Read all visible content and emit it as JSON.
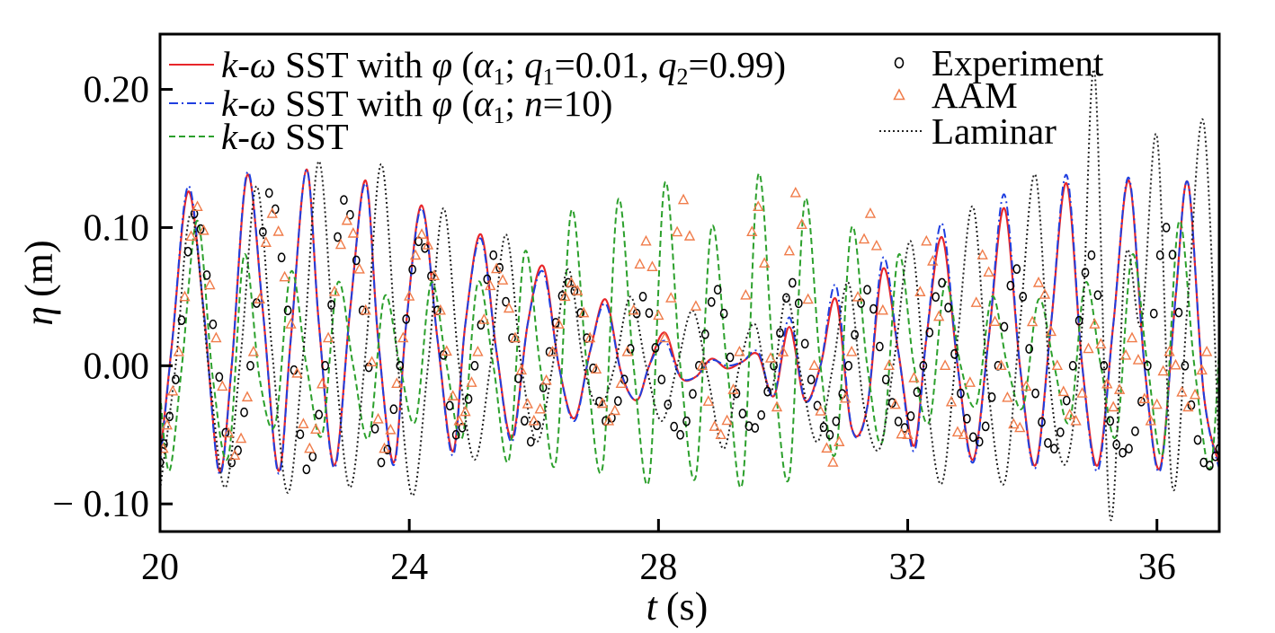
{
  "chart_data": {
    "type": "line",
    "xlabel_var": "t",
    "xlabel_unit": "(s)",
    "ylabel_var": "η",
    "ylabel_unit": "(m)",
    "xlim": [
      20,
      37
    ],
    "ylim": [
      -0.12,
      0.24
    ],
    "xticks": [
      20,
      24,
      28,
      32,
      36
    ],
    "xtick_labels": [
      "20",
      "24",
      "28",
      "32",
      "36"
    ],
    "yticks": [
      0.2,
      0.1,
      0.0,
      -0.1
    ],
    "ytick_labels": [
      "0.20",
      "0.10",
      "0.00",
      "− 0.10"
    ],
    "legend_placement": "top",
    "series": [
      {
        "key": "phi_q",
        "name": "k-ω SST with φ (α1; q1=0.01, q2=0.99)",
        "style": "solid",
        "color": "#e8262a",
        "x": [
          20.0,
          20.2,
          20.45,
          20.7,
          20.95,
          21.15,
          21.4,
          21.65,
          21.9,
          22.1,
          22.35,
          22.55,
          22.8,
          23.05,
          23.3,
          23.5,
          23.75,
          23.95,
          24.2,
          24.45,
          24.7,
          24.9,
          25.15,
          25.4,
          25.65,
          25.9,
          26.15,
          26.4,
          26.65,
          26.9,
          27.15,
          27.4,
          27.65,
          27.85,
          28.1,
          28.35,
          28.6,
          28.85,
          29.1,
          29.35,
          29.6,
          29.85,
          30.1,
          30.35,
          30.6,
          30.85,
          31.1,
          31.35,
          31.6,
          31.85,
          32.1,
          32.3,
          32.55,
          32.8,
          33.05,
          33.3,
          33.55,
          33.8,
          34.05,
          34.3,
          34.55,
          34.8,
          35.05,
          35.3,
          35.55,
          35.8,
          36.05,
          36.3,
          36.5,
          36.75,
          37.0
        ],
        "y": [
          -0.068,
          0.02,
          0.126,
          0.04,
          -0.076,
          0.0,
          0.138,
          0.04,
          -0.076,
          0.02,
          0.142,
          0.03,
          -0.072,
          0.04,
          0.134,
          0.02,
          -0.07,
          0.03,
          0.116,
          0.02,
          -0.062,
          0.03,
          0.095,
          0.01,
          -0.052,
          0.03,
          0.072,
          0.0,
          -0.038,
          0.01,
          0.048,
          -0.005,
          -0.025,
          0.0,
          0.024,
          -0.008,
          -0.008,
          0.005,
          -0.002,
          0.003,
          0.008,
          -0.022,
          0.028,
          -0.025,
          0.0,
          0.048,
          -0.045,
          -0.03,
          0.07,
          0.01,
          -0.058,
          0.02,
          0.093,
          0.0,
          -0.068,
          0.02,
          0.114,
          0.0,
          -0.072,
          0.03,
          0.132,
          0.0,
          -0.072,
          0.03,
          0.134,
          0.0,
          -0.074,
          0.05,
          0.132,
          -0.02,
          -0.072
        ]
      },
      {
        "key": "phi_n",
        "name": "k-ω SST with φ (α1; n=10)",
        "style": "dashdot",
        "color": "#1f3fe0",
        "x": [
          20.0,
          20.2,
          20.45,
          20.7,
          20.95,
          21.15,
          21.4,
          21.65,
          21.9,
          22.1,
          22.35,
          22.55,
          22.8,
          23.05,
          23.3,
          23.5,
          23.75,
          23.95,
          24.2,
          24.45,
          24.7,
          24.9,
          25.15,
          25.4,
          25.65,
          25.9,
          26.15,
          26.4,
          26.65,
          26.9,
          27.15,
          27.4,
          27.65,
          27.85,
          28.1,
          28.35,
          28.6,
          28.85,
          29.1,
          29.35,
          29.6,
          29.85,
          30.1,
          30.35,
          30.6,
          30.85,
          31.1,
          31.35,
          31.6,
          31.85,
          32.1,
          32.3,
          32.55,
          32.8,
          33.05,
          33.3,
          33.55,
          33.8,
          34.05,
          34.3,
          34.55,
          34.8,
          35.05,
          35.3,
          35.55,
          35.8,
          36.05,
          36.3,
          36.5,
          36.75,
          37.0
        ],
        "y": [
          -0.072,
          0.02,
          0.13,
          0.04,
          -0.078,
          0.0,
          0.14,
          0.04,
          -0.078,
          0.02,
          0.142,
          0.03,
          -0.074,
          0.04,
          0.132,
          0.02,
          -0.072,
          0.03,
          0.114,
          0.02,
          -0.065,
          0.03,
          0.092,
          0.01,
          -0.055,
          0.03,
          0.068,
          0.0,
          -0.04,
          0.01,
          0.045,
          -0.005,
          -0.025,
          0.0,
          0.018,
          -0.008,
          -0.008,
          0.004,
          0.0,
          0.003,
          0.01,
          -0.022,
          0.035,
          -0.025,
          0.0,
          0.058,
          -0.045,
          -0.03,
          0.078,
          0.01,
          -0.062,
          0.02,
          0.103,
          0.0,
          -0.07,
          0.02,
          0.124,
          0.0,
          -0.074,
          0.03,
          0.138,
          0.0,
          -0.076,
          0.03,
          0.136,
          0.0,
          -0.076,
          0.05,
          0.132,
          -0.02,
          -0.075
        ]
      },
      {
        "key": "sst",
        "name": "k-ω SST",
        "style": "dashed",
        "color": "#2ca02c",
        "x": [
          20.0,
          20.15,
          20.35,
          20.6,
          20.85,
          21.1,
          21.35,
          21.6,
          21.85,
          22.1,
          22.35,
          22.6,
          22.85,
          23.1,
          23.35,
          23.6,
          23.85,
          24.1,
          24.35,
          24.6,
          24.85,
          25.1,
          25.35,
          25.6,
          25.85,
          26.1,
          26.35,
          26.6,
          26.85,
          27.1,
          27.35,
          27.6,
          27.85,
          28.1,
          28.35,
          28.6,
          28.85,
          29.1,
          29.35,
          29.6,
          29.85,
          30.1,
          30.35,
          30.6,
          30.85,
          31.1,
          31.35,
          31.6,
          31.85,
          32.1,
          32.35,
          32.6,
          32.85,
          33.1,
          33.35,
          33.6,
          33.85,
          34.1,
          34.35,
          34.6,
          34.85,
          35.1,
          35.35,
          35.6,
          35.85,
          36.1,
          36.35,
          36.6,
          36.85,
          37.0
        ],
        "y": [
          -0.02,
          -0.076,
          0.0,
          0.105,
          -0.01,
          -0.065,
          0.08,
          -0.01,
          -0.042,
          0.068,
          0.0,
          -0.05,
          0.06,
          0.0,
          -0.052,
          0.05,
          0.0,
          -0.04,
          0.06,
          0.0,
          -0.052,
          0.06,
          0.0,
          -0.068,
          0.082,
          0.0,
          -0.07,
          0.112,
          0.0,
          -0.074,
          0.12,
          0.0,
          -0.082,
          0.132,
          0.0,
          -0.08,
          0.1,
          0.0,
          -0.084,
          0.138,
          0.0,
          -0.08,
          0.12,
          0.0,
          -0.062,
          0.1,
          0.0,
          -0.054,
          0.08,
          0.0,
          -0.04,
          0.06,
          0.0,
          -0.028,
          0.05,
          0.0,
          -0.03,
          0.048,
          0.0,
          -0.04,
          0.06,
          0.0,
          -0.05,
          0.08,
          0.0,
          -0.062,
          0.104,
          0.0,
          -0.075,
          0.012
        ]
      },
      {
        "key": "laminar",
        "name": "Laminar",
        "style": "dotted",
        "color": "#222222",
        "x": [
          20.0,
          20.25,
          20.5,
          20.8,
          21.05,
          21.3,
          21.55,
          21.8,
          22.05,
          22.3,
          22.55,
          22.8,
          23.05,
          23.3,
          23.55,
          23.8,
          24.05,
          24.3,
          24.55,
          24.8,
          25.05,
          25.3,
          25.55,
          25.8,
          26.05,
          26.3,
          26.55,
          26.8,
          27.05,
          27.3,
          27.55,
          27.8,
          28.05,
          28.3,
          28.55,
          28.8,
          29.05,
          29.3,
          29.55,
          29.8,
          30.05,
          30.3,
          30.55,
          30.8,
          31.05,
          31.3,
          31.55,
          31.8,
          32.05,
          32.3,
          32.55,
          32.8,
          33.05,
          33.3,
          33.55,
          33.8,
          34.05,
          34.3,
          34.55,
          34.8,
          35.0,
          35.25,
          35.5,
          35.75,
          36.0,
          36.25,
          36.5,
          36.75,
          37.0
        ],
        "y": [
          -0.09,
          0.0,
          0.11,
          -0.01,
          -0.088,
          0.01,
          0.13,
          0.01,
          -0.092,
          0.01,
          0.148,
          0.01,
          -0.088,
          0.01,
          0.146,
          0.01,
          -0.094,
          0.0,
          0.114,
          0.0,
          -0.068,
          0.0,
          0.095,
          0.0,
          -0.055,
          0.0,
          0.07,
          0.0,
          -0.03,
          0.0,
          0.05,
          0.0,
          -0.04,
          0.0,
          0.04,
          -0.01,
          -0.06,
          0.0,
          0.03,
          -0.02,
          0.05,
          -0.01,
          -0.055,
          0.0,
          0.06,
          -0.03,
          -0.06,
          0.01,
          0.09,
          -0.02,
          -0.085,
          0.02,
          0.115,
          -0.02,
          -0.085,
          0.03,
          0.138,
          -0.02,
          -0.07,
          0.03,
          0.212,
          -0.11,
          0.08,
          0.03,
          0.166,
          -0.088,
          0.05,
          0.176,
          -0.065
        ]
      },
      {
        "key": "experiment",
        "name": "Experiment",
        "style": "circle",
        "color": "#000000",
        "x": [
          20.0,
          20.25,
          20.55,
          20.85,
          21.15,
          21.45,
          21.75,
          22.05,
          22.35,
          22.65,
          22.95,
          23.25,
          23.55,
          23.85,
          24.15,
          24.45,
          24.75,
          25.05,
          25.35,
          25.65,
          25.95,
          26.25,
          26.55,
          26.85,
          27.15,
          27.45,
          27.75,
          28.05,
          28.35,
          28.65,
          28.95,
          29.25,
          29.55,
          29.85,
          30.15,
          30.45,
          30.75,
          31.05,
          31.35,
          31.65,
          31.95,
          32.25,
          32.55,
          32.85,
          33.15,
          33.45,
          33.75,
          34.05,
          34.35,
          34.65,
          34.95,
          35.25,
          35.55,
          35.85,
          36.15,
          36.45,
          36.75,
          37.0
        ],
        "y": [
          -0.07,
          -0.01,
          0.11,
          0.03,
          -0.07,
          0.0,
          0.125,
          0.04,
          -0.075,
          0.0,
          0.12,
          0.04,
          -0.07,
          0.0,
          0.09,
          0.04,
          -0.05,
          0.0,
          0.08,
          0.02,
          -0.055,
          0.01,
          0.06,
          0.02,
          -0.04,
          -0.01,
          0.05,
          -0.01,
          -0.05,
          0.0,
          0.055,
          -0.02,
          -0.045,
          0.0,
          0.06,
          -0.01,
          -0.05,
          0.0,
          0.055,
          -0.01,
          -0.045,
          0.0,
          0.06,
          -0.02,
          -0.055,
          0.0,
          0.07,
          -0.02,
          -0.06,
          0.0,
          0.08,
          -0.04,
          -0.06,
          0.0,
          0.1,
          0.0,
          -0.07,
          -0.06
        ]
      },
      {
        "key": "aam",
        "name": "AAM",
        "style": "triangle",
        "color": "#f07c4a",
        "x": [
          20.05,
          20.3,
          20.6,
          20.9,
          21.2,
          21.5,
          21.8,
          22.1,
          22.4,
          22.7,
          23.0,
          23.3,
          23.6,
          23.9,
          24.2,
          24.5,
          24.8,
          25.1,
          25.4,
          25.7,
          26.0,
          26.3,
          26.6,
          26.9,
          27.2,
          27.5,
          27.8,
          28.1,
          28.4,
          28.7,
          29.0,
          29.3,
          29.6,
          29.9,
          30.2,
          30.5,
          30.8,
          31.1,
          31.4,
          31.7,
          32.0,
          32.3,
          32.6,
          32.9,
          33.2,
          33.5,
          33.8,
          34.1,
          34.4,
          34.7,
          35.0,
          35.3,
          35.6,
          35.9,
          36.2,
          36.5,
          36.8
        ],
        "y": [
          -0.06,
          0.01,
          0.115,
          0.02,
          -0.065,
          0.01,
          0.11,
          0.03,
          -0.06,
          0.02,
          0.105,
          0.04,
          -0.06,
          0.02,
          0.095,
          0.04,
          -0.04,
          0.01,
          0.07,
          0.02,
          -0.04,
          0.01,
          0.06,
          0.02,
          -0.04,
          0.01,
          0.09,
          0.02,
          0.12,
          0.0,
          -0.05,
          0.01,
          0.115,
          -0.03,
          0.125,
          0.0,
          -0.07,
          0.01,
          0.11,
          0.0,
          -0.05,
          0.09,
          0.0,
          -0.05,
          0.08,
          0.0,
          -0.045,
          0.06,
          0.0,
          -0.04,
          0.03,
          -0.03,
          0.02,
          -0.04,
          0.01,
          -0.03,
          0.01
        ]
      }
    ],
    "legend_left": [
      {
        "series": "phi_q",
        "v1": "k",
        "sep": "-",
        "v2": "ω",
        "txt1": " SST with ",
        "v3": "φ",
        "txt2": " (",
        "v4": "α",
        "s1": "1",
        "txt3": "; ",
        "v5": "q",
        "s2": "1",
        "txt4": "=0.01, ",
        "v6": "q",
        "s3": "2",
        "txt5": "=0.99)"
      },
      {
        "series": "phi_n",
        "v1": "k",
        "sep": "-",
        "v2": "ω",
        "txt1": " SST with ",
        "v3": "φ",
        "txt2": " (",
        "v4": "α",
        "s1": "1",
        "txt3": "; ",
        "v5": "n",
        "txt4": "=10)"
      },
      {
        "series": "sst",
        "v1": "k",
        "sep": "-",
        "v2": "ω",
        "txt1": " SST"
      }
    ],
    "legend_right": [
      {
        "series": "experiment",
        "label": "Experiment"
      },
      {
        "series": "aam",
        "label": "AAM"
      },
      {
        "series": "laminar",
        "label": "Laminar"
      }
    ]
  }
}
